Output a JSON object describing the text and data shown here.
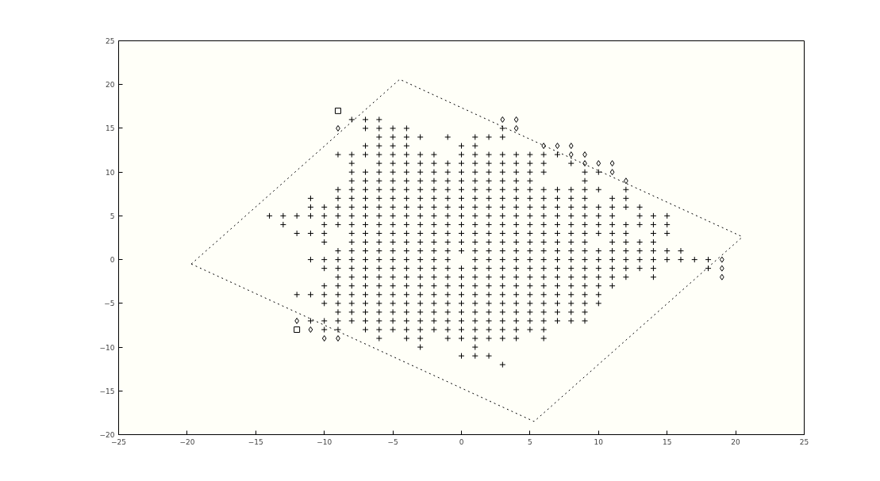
{
  "chart_data": {
    "type": "scatter",
    "xlim": [
      -25,
      25
    ],
    "xticks": [
      -25,
      -20,
      -15,
      -10,
      -5,
      0,
      5,
      10,
      15,
      20,
      25
    ],
    "ylim": [
      -20,
      25
    ],
    "yticks": [
      25,
      20,
      15,
      10,
      5,
      0,
      -5,
      -10,
      -15,
      -20
    ],
    "grid": false,
    "series": [
      {
        "color": "#000000",
        "marker": "cross",
        "x": [
          -8,
          -7,
          -6,
          -7,
          -6,
          -5,
          -4,
          3,
          -6,
          -5,
          -4,
          -3,
          -1,
          1,
          2,
          3,
          -7,
          -6,
          -5,
          -4,
          0,
          1,
          -9,
          -8,
          -7,
          -6,
          -5,
          -4,
          -3,
          -2,
          0,
          1,
          2,
          3,
          4,
          5,
          6,
          7,
          -8,
          -6,
          -5,
          -4,
          -3,
          -2,
          -1,
          0,
          1,
          2,
          3,
          4,
          5,
          6,
          8,
          -8,
          -7,
          -6,
          -5,
          -4,
          -3,
          -2,
          -1,
          0,
          1,
          2,
          3,
          4,
          5,
          6,
          9,
          10,
          -8,
          -7,
          -6,
          -5,
          -4,
          -3,
          -2,
          -1,
          0,
          1,
          2,
          3,
          4,
          5,
          9,
          -9,
          -8,
          -7,
          -6,
          -5,
          -4,
          -3,
          -2,
          -1,
          0,
          1,
          2,
          3,
          4,
          5,
          6,
          7,
          8,
          9,
          10,
          12,
          -11,
          -9,
          -8,
          -7,
          -6,
          -5,
          -4,
          -3,
          -2,
          -1,
          0,
          1,
          2,
          3,
          4,
          5,
          6,
          7,
          8,
          9,
          11,
          12,
          -11,
          -10,
          -9,
          -8,
          -7,
          -6,
          -5,
          -4,
          -3,
          -2,
          -1,
          0,
          1,
          2,
          3,
          4,
          5,
          6,
          7,
          8,
          9,
          10,
          11,
          12,
          13,
          -14,
          -13,
          -12,
          -11,
          -10,
          -9,
          -8,
          -7,
          -6,
          -5,
          -4,
          -3,
          -2,
          -1,
          0,
          1,
          2,
          3,
          4,
          5,
          6,
          7,
          8,
          9,
          10,
          11,
          13,
          14,
          15,
          -13,
          -10,
          -9,
          -8,
          -7,
          -6,
          -5,
          -4,
          -3,
          -2,
          -1,
          0,
          1,
          2,
          3,
          4,
          5,
          6,
          7,
          8,
          9,
          10,
          11,
          12,
          13,
          14,
          15,
          -12,
          -11,
          -10,
          -8,
          -7,
          -6,
          -5,
          -4,
          -3,
          -2,
          -1,
          0,
          1,
          2,
          3,
          4,
          5,
          6,
          7,
          8,
          9,
          10,
          11,
          12,
          14,
          15,
          -10,
          -8,
          -7,
          -6,
          -5,
          -4,
          -3,
          -2,
          -1,
          0,
          1,
          2,
          3,
          4,
          5,
          6,
          7,
          8,
          9,
          11,
          12,
          13,
          14,
          -9,
          -8,
          -7,
          -6,
          -5,
          -4,
          -3,
          -2,
          -1,
          0,
          1,
          2,
          3,
          4,
          5,
          6,
          7,
          8,
          9,
          10,
          11,
          12,
          13,
          14,
          15,
          16,
          -11,
          -10,
          -9,
          -8,
          -7,
          -6,
          -5,
          -4,
          -3,
          -2,
          -1,
          1,
          2,
          3,
          4,
          5,
          6,
          7,
          8,
          9,
          10,
          11,
          12,
          13,
          14,
          15,
          16,
          17,
          18,
          -10,
          -9,
          -8,
          -7,
          -6,
          -5,
          -4,
          -3,
          -2,
          -1,
          0,
          1,
          2,
          3,
          4,
          5,
          6,
          7,
          8,
          9,
          10,
          11,
          12,
          13,
          14,
          18,
          -9,
          -8,
          -7,
          -6,
          -5,
          -4,
          -3,
          -2,
          -1,
          0,
          1,
          2,
          3,
          4,
          5,
          6,
          7,
          8,
          9,
          10,
          11,
          12,
          14,
          -10,
          -9,
          -8,
          -7,
          -6,
          -5,
          -4,
          -3,
          -2,
          -1,
          0,
          1,
          2,
          3,
          4,
          5,
          6,
          7,
          8,
          9,
          10,
          11,
          -12,
          -11,
          -10,
          -9,
          -8,
          -7,
          -6,
          -5,
          -4,
          -3,
          -2,
          -1,
          0,
          1,
          2,
          3,
          4,
          5,
          6,
          7,
          8,
          9,
          10,
          -10,
          -9,
          -8,
          -7,
          -6,
          -5,
          -4,
          -3,
          -2,
          -1,
          0,
          1,
          2,
          3,
          4,
          5,
          6,
          7,
          8,
          9,
          10,
          -9,
          -8,
          -7,
          -6,
          -5,
          -4,
          -3,
          -2,
          -1,
          0,
          1,
          2,
          3,
          4,
          5,
          6,
          7,
          8,
          9,
          -11,
          -10,
          -9,
          -8,
          -7,
          -6,
          -5,
          -4,
          -3,
          -2,
          -1,
          0,
          1,
          2,
          3,
          4,
          5,
          6,
          7,
          8,
          9,
          -10,
          -9,
          -7,
          -6,
          -5,
          -4,
          -3,
          -2,
          -1,
          0,
          1,
          2,
          3,
          4,
          5,
          6,
          -6,
          -4,
          -3,
          -1,
          0,
          1,
          2,
          3,
          4,
          6,
          -3,
          1,
          0,
          1,
          2,
          3
        ],
        "values": [
          16,
          16,
          16,
          15,
          15,
          15,
          15,
          15,
          14,
          14,
          14,
          14,
          14,
          14,
          14,
          14,
          13,
          13,
          13,
          13,
          13,
          13,
          12,
          12,
          12,
          12,
          12,
          12,
          12,
          12,
          12,
          12,
          12,
          12,
          12,
          12,
          12,
          12,
          11,
          11,
          11,
          11,
          11,
          11,
          11,
          11,
          11,
          11,
          11,
          11,
          11,
          11,
          11,
          10,
          10,
          10,
          10,
          10,
          10,
          10,
          10,
          10,
          10,
          10,
          10,
          10,
          10,
          10,
          10,
          10,
          9,
          9,
          9,
          9,
          9,
          9,
          9,
          9,
          9,
          9,
          9,
          9,
          9,
          9,
          9,
          8,
          8,
          8,
          8,
          8,
          8,
          8,
          8,
          8,
          8,
          8,
          8,
          8,
          8,
          8,
          8,
          8,
          8,
          8,
          8,
          8,
          7,
          7,
          7,
          7,
          7,
          7,
          7,
          7,
          7,
          7,
          7,
          7,
          7,
          7,
          7,
          7,
          7,
          7,
          7,
          7,
          7,
          7,
          6,
          6,
          6,
          6,
          6,
          6,
          6,
          6,
          6,
          6,
          6,
          6,
          6,
          6,
          6,
          6,
          6,
          6,
          6,
          6,
          6,
          6,
          6,
          6,
          6,
          5,
          5,
          5,
          5,
          5,
          5,
          5,
          5,
          5,
          5,
          5,
          5,
          5,
          5,
          5,
          5,
          5,
          5,
          5,
          5,
          5,
          5,
          5,
          5,
          5,
          5,
          5,
          5,
          5,
          4,
          4,
          4,
          4,
          4,
          4,
          4,
          4,
          4,
          4,
          4,
          4,
          4,
          4,
          4,
          4,
          4,
          4,
          4,
          4,
          4,
          4,
          4,
          4,
          4,
          4,
          4,
          3,
          3,
          3,
          3,
          3,
          3,
          3,
          3,
          3,
          3,
          3,
          3,
          3,
          3,
          3,
          3,
          3,
          3,
          3,
          3,
          3,
          3,
          3,
          3,
          3,
          3,
          2,
          2,
          2,
          2,
          2,
          2,
          2,
          2,
          2,
          2,
          2,
          2,
          2,
          2,
          2,
          2,
          2,
          2,
          2,
          2,
          2,
          2,
          2,
          1,
          1,
          1,
          1,
          1,
          1,
          1,
          1,
          1,
          1,
          1,
          1,
          1,
          1,
          1,
          1,
          1,
          1,
          1,
          1,
          1,
          1,
          1,
          1,
          1,
          1,
          0,
          0,
          0,
          0,
          0,
          0,
          0,
          0,
          0,
          0,
          0,
          0,
          0,
          0,
          0,
          0,
          0,
          0,
          0,
          0,
          0,
          0,
          0,
          0,
          0,
          0,
          0,
          0,
          0,
          -1,
          -1,
          -1,
          -1,
          -1,
          -1,
          -1,
          -1,
          -1,
          -1,
          -1,
          -1,
          -1,
          -1,
          -1,
          -1,
          -1,
          -1,
          -1,
          -1,
          -1,
          -1,
          -1,
          -1,
          -1,
          -1,
          -2,
          -2,
          -2,
          -2,
          -2,
          -2,
          -2,
          -2,
          -2,
          -2,
          -2,
          -2,
          -2,
          -2,
          -2,
          -2,
          -2,
          -2,
          -2,
          -2,
          -2,
          -2,
          -2,
          -3,
          -3,
          -3,
          -3,
          -3,
          -3,
          -3,
          -3,
          -3,
          -3,
          -3,
          -3,
          -3,
          -3,
          -3,
          -3,
          -3,
          -3,
          -3,
          -3,
          -3,
          -3,
          -4,
          -4,
          -4,
          -4,
          -4,
          -4,
          -4,
          -4,
          -4,
          -4,
          -4,
          -4,
          -4,
          -4,
          -4,
          -4,
          -4,
          -4,
          -4,
          -4,
          -4,
          -4,
          -4,
          -5,
          -5,
          -5,
          -5,
          -5,
          -5,
          -5,
          -5,
          -5,
          -5,
          -5,
          -5,
          -5,
          -5,
          -5,
          -5,
          -5,
          -5,
          -5,
          -5,
          -5,
          -6,
          -6,
          -6,
          -6,
          -6,
          -6,
          -6,
          -6,
          -6,
          -6,
          -6,
          -6,
          -6,
          -6,
          -6,
          -6,
          -6,
          -6,
          -6,
          -7,
          -7,
          -7,
          -7,
          -7,
          -7,
          -7,
          -7,
          -7,
          -7,
          -7,
          -7,
          -7,
          -7,
          -7,
          -7,
          -7,
          -7,
          -7,
          -7,
          -7,
          -8,
          -8,
          -8,
          -8,
          -8,
          -8,
          -8,
          -8,
          -8,
          -8,
          -8,
          -8,
          -8,
          -8,
          -8,
          -8,
          -9,
          -9,
          -9,
          -9,
          -9,
          -9,
          -9,
          -9,
          -9,
          -9,
          -10,
          -10,
          -11,
          -11,
          -11,
          -12
        ]
      },
      {
        "color": "#000000",
        "marker": "diamond",
        "x": [
          -9,
          3,
          4,
          4,
          6,
          7,
          8,
          8,
          9,
          9,
          10,
          11,
          11,
          12,
          19,
          19,
          19,
          -12,
          -11,
          -10,
          -9
        ],
        "values": [
          15,
          16,
          16,
          15,
          13,
          13,
          13,
          12,
          12,
          11,
          11,
          11,
          10,
          9,
          0,
          -1,
          -2,
          -7,
          -8,
          -9,
          -9
        ]
      },
      {
        "color": "#000000",
        "marker": "square",
        "x": [
          -9,
          -12
        ],
        "values": [
          17,
          -8
        ]
      },
      {
        "type": "line",
        "color": "#000000",
        "marker": "none",
        "line_style": "dotted",
        "x": [
          -19.7,
          -4.5,
          20.5
        ],
        "values": [
          -0.5,
          20.6,
          2.6
        ]
      },
      {
        "type": "line",
        "color": "#000000",
        "marker": "none",
        "line_style": "dotted",
        "x": [
          -19.7,
          5.3,
          20.5
        ],
        "values": [
          -0.5,
          -18.5,
          2.6
        ]
      }
    ]
  }
}
